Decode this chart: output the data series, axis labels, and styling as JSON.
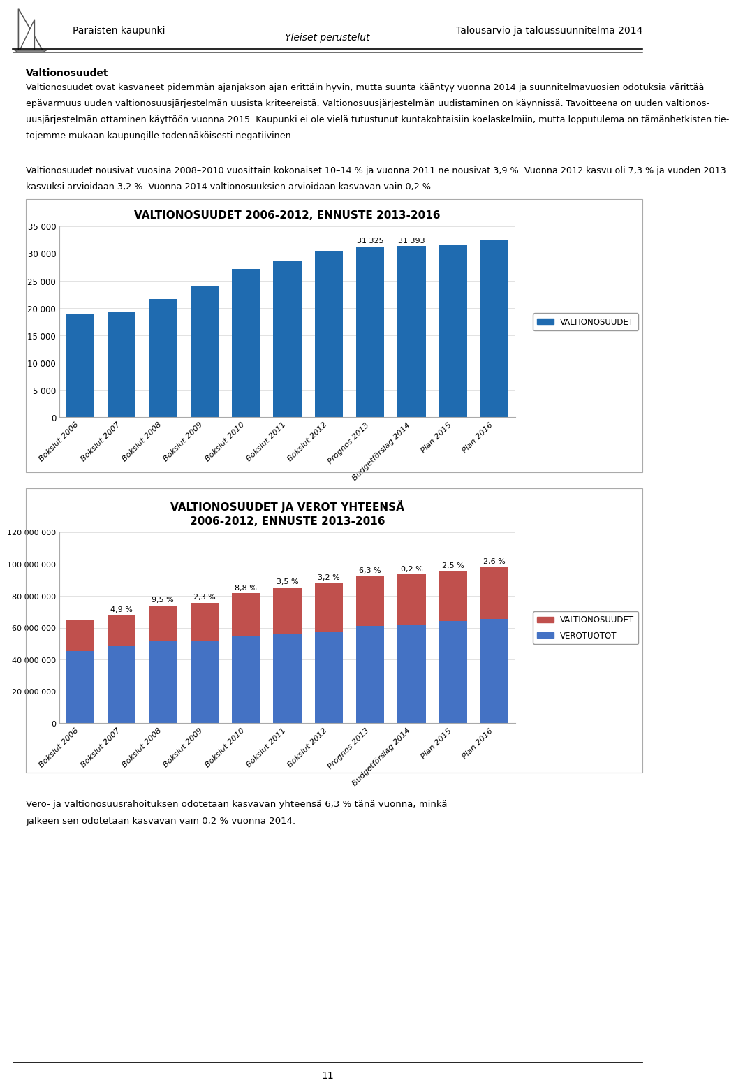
{
  "header_left": "Paraisten kaupunki",
  "header_center": "Yleiset perustelut",
  "header_right": "Talousarvio ja taloussuunnitelma 2014",
  "section_title": "Valtionosuudet",
  "paragraph1_lines": [
    "Valtionosuudet ovat kasvaneet pidemmän ajanjakson ajan erittäin hyvin, mutta suunta kääntyy vuonna 2014 ja suunnitelmavuosien odotuksia värittää",
    "epävarmuus uuden valtionosuusjärjestelmän uusista kriteereistä. Valtionosuusjärjestelmän uudistaminen on käynnissä. Tavoitteena on uuden valtionos-",
    "uusjärjestelmän ottaminen käyttöön vuonna 2015. Kaupunki ei ole vielä tutustunut kuntakohtaisiin koelaskelmiin, mutta lopputulema on tämänhetkisten tie-",
    "tojemme mukaan kaupungille todennäköisesti negatiivinen."
  ],
  "paragraph2_lines": [
    "Valtionosuudet nousivat vuosina 2008–2010 vuosittain kokonaiset 10–14 % ja vuonna 2011 ne nousivat 3,9 %. Vuonna 2012 kasvu oli 7,3 % ja vuoden 2013",
    "kasvuksi arvioidaan 3,2 %. Vuonna 2014 valtionosuuksien arvioidaan kasvavan vain 0,2 %."
  ],
  "chart1_title": "VALTIONOSUUDET 2006-2012, ENNUSTE 2013-2016",
  "chart1_categories": [
    "Bokslut 2006",
    "Bokslut 2007",
    "Bokslut 2008",
    "Bokslut 2009",
    "Bokslut 2010",
    "Bokslut 2011",
    "Bokslut 2012",
    "Prognos 2013",
    "Budgetförslag 2014",
    "Plan 2015",
    "Plan 2016"
  ],
  "chart1_values": [
    18900,
    19400,
    21700,
    24000,
    27200,
    28600,
    30500,
    31325,
    31393,
    31700,
    32600
  ],
  "chart1_bar_color": "#1F6BB0",
  "chart1_annotate_indices": [
    7,
    8
  ],
  "chart1_annotate_labels": [
    "31 325",
    "31 393"
  ],
  "chart1_ylim": [
    0,
    35000
  ],
  "chart1_yticks": [
    0,
    5000,
    10000,
    15000,
    20000,
    25000,
    30000,
    35000
  ],
  "chart1_legend": "VALTIONOSUUDET",
  "chart2_title_line1": "VALTIONOSUUDET JA VEROT YHTEENSÄ",
  "chart2_title_line2": "2006-2012, ENNUSTE 2013-2016",
  "chart2_categories": [
    "Bokslut 2006",
    "Bokslut 2007",
    "Bokslut 2008",
    "Bokslut 2009",
    "Bokslut 2010",
    "Bokslut 2011",
    "Bokslut 2012",
    "Prognos 2013",
    "Budgetförslag 2014",
    "Plan 2015",
    "Plan 2016"
  ],
  "chart2_valtionosuudet": [
    19000000,
    19700000,
    22500000,
    24300000,
    27300000,
    28900000,
    30600000,
    31500000,
    31400000,
    31900000,
    32900000
  ],
  "chart2_verotuotot": [
    45500000,
    48500000,
    51500000,
    51500000,
    54500000,
    56500000,
    57500000,
    61000000,
    62000000,
    64000000,
    65500000
  ],
  "chart2_pct_labels": [
    "4,9 %",
    "9,5 %",
    "2,3 %",
    "8,8 %",
    "3,5 %",
    "3,2 %",
    "6,3 %",
    "0,2 %",
    "2,5 %",
    "2,6 %"
  ],
  "chart2_pct_indices": [
    1,
    2,
    3,
    4,
    5,
    6,
    7,
    8,
    9,
    10
  ],
  "chart2_color_valtionosuudet": "#C0504D",
  "chart2_color_verotuotot": "#4472C4",
  "chart2_ylim": [
    0,
    120000000
  ],
  "chart2_yticks": [
    0,
    20000000,
    40000000,
    60000000,
    80000000,
    100000000,
    120000000
  ],
  "chart2_legend_valtionosuudet": "VALTIONOSUUDET",
  "chart2_legend_verotuotot": "VEROTUOTOT",
  "footer_line1": "Vero- ja valtionosuusrahoituksen odotetaan kasvavan yhteensä 6,3 % tänä vuonna, minkä",
  "footer_line2": "jälkeen sen odotetaan kasvavan vain 0,2 % vuonna 2014.",
  "page_number": "11",
  "bg_color": "#FFFFFF"
}
